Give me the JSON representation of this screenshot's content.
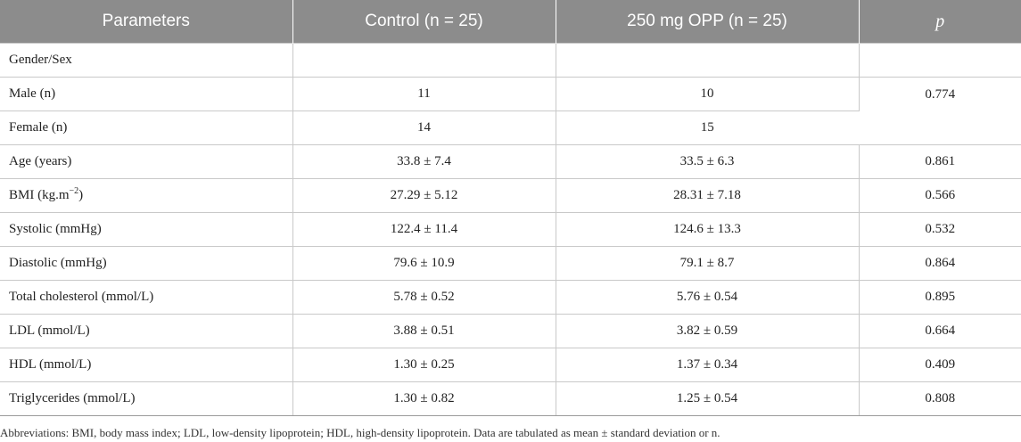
{
  "table": {
    "headers": [
      "Parameters",
      "Control (n = 25)",
      "250 mg OPP (n = 25)",
      "p"
    ],
    "rows": [
      {
        "parameter": "Gender/Sex",
        "control": "",
        "opp": "",
        "p": ""
      },
      {
        "parameter": "Male (n)",
        "control": "11",
        "opp": "10",
        "p": "0.774"
      },
      {
        "parameter": "Female (n)",
        "control": "14",
        "opp": "15"
      },
      {
        "parameter": "Age (years)",
        "control": "33.8 ± 7.4",
        "opp": "33.5 ± 6.3",
        "p": "0.861"
      },
      {
        "parameter": "BMI (kg.m",
        "parameter_sup": "−2",
        "parameter_suffix": ")",
        "control": "27.29 ± 5.12",
        "opp": "28.31 ± 7.18",
        "p": "0.566"
      },
      {
        "parameter": "Systolic (mmHg)",
        "control": "122.4 ± 11.4",
        "opp": "124.6 ± 13.3",
        "p": "0.532"
      },
      {
        "parameter": "Diastolic (mmHg)",
        "control": "79.6 ± 10.9",
        "opp": "79.1 ± 8.7",
        "p": "0.864"
      },
      {
        "parameter": "Total cholesterol (mmol/L)",
        "control": "5.78 ± 0.52",
        "opp": "5.76 ± 0.54",
        "p": "0.895"
      },
      {
        "parameter": "LDL (mmol/L)",
        "control": "3.88 ± 0.51",
        "opp": "3.82 ± 0.59",
        "p": "0.664"
      },
      {
        "parameter": "HDL (mmol/L)",
        "control": "1.30 ± 0.25",
        "opp": "1.37 ± 0.34",
        "p": "0.409"
      },
      {
        "parameter": "Triglycerides (mmol/L)",
        "control": "1.30 ± 0.82",
        "opp": "1.25 ± 0.54",
        "p": "0.808"
      }
    ]
  },
  "footnote": "Abbreviations: BMI, body mass index; LDL, low-density lipoprotein; HDL, high-density lipoprotein. Data are tabulated as mean ± standard deviation or n.",
  "colors": {
    "header_background": "#8c8c8c",
    "header_text": "#ffffff",
    "grid_line": "#c9c9c9",
    "body_text": "#222222"
  }
}
